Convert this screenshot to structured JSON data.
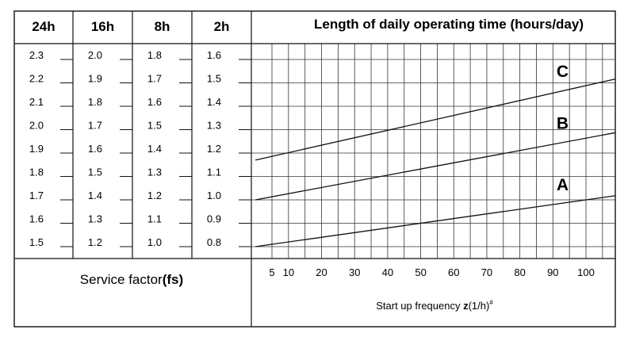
{
  "chart_data": {
    "type": "line",
    "title": "Length of daily operating time (hours/day)",
    "operating_time_columns": [
      {
        "label": "24h",
        "ticks": [
          "2.3",
          "2.2",
          "2.1",
          "2.0",
          "1.9",
          "1.8",
          "1.7",
          "1.6",
          "1.5"
        ]
      },
      {
        "label": "16h",
        "ticks": [
          "2.0",
          "1.9",
          "1.8",
          "1.7",
          "1.6",
          "1.5",
          "1.4",
          "1.3",
          "1.2"
        ]
      },
      {
        "label": "8h",
        "ticks": [
          "1.8",
          "1.7",
          "1.6",
          "1.5",
          "1.4",
          "1.3",
          "1.2",
          "1.1",
          "1.0"
        ]
      },
      {
        "label": "2h",
        "ticks": [
          "1.6",
          "1.5",
          "1.4",
          "1.3",
          "1.2",
          "1.1",
          "1.0",
          "0.9",
          "0.8"
        ]
      }
    ],
    "ylim": [
      0.8,
      1.6
    ],
    "x_ticks": [
      5,
      10,
      20,
      30,
      40,
      50,
      60,
      70,
      80,
      90,
      100
    ],
    "x_grid": [
      5,
      10,
      15,
      20,
      25,
      30,
      35,
      40,
      45,
      50,
      55,
      60,
      65,
      70,
      75,
      80,
      85,
      90,
      95,
      100,
      105
    ],
    "xlabel_prefix": "Start up frequency ",
    "xlabel_var": "z",
    "xlabel_unit": "(1/h)",
    "xlabel_mark": "#",
    "ylabel_prefix": "Service factor",
    "ylabel_var": "(fs)",
    "grid": true,
    "series": [
      {
        "name": "A",
        "x": [
          0,
          110
        ],
        "y": [
          0.8,
          1.02
        ]
      },
      {
        "name": "B",
        "x": [
          0,
          110
        ],
        "y": [
          1.0,
          1.29
        ]
      },
      {
        "name": "C",
        "x": [
          0,
          110
        ],
        "y": [
          1.17,
          1.52
        ]
      }
    ]
  }
}
